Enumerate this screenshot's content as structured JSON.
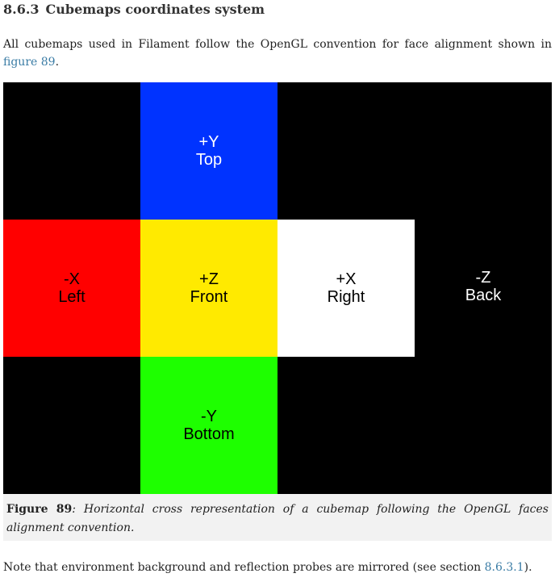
{
  "section": {
    "number": "8.6.3",
    "title": "Cubemaps coordinates system"
  },
  "intro": {
    "text": "All cubemaps used in Filament follow the OpenGL convention for face alignment shown in ",
    "link": "figure 89",
    "end": "."
  },
  "faces": {
    "top": {
      "axis": "+Y",
      "name": "Top"
    },
    "left": {
      "axis": "-X",
      "name": "Left"
    },
    "front": {
      "axis": "+Z",
      "name": "Front"
    },
    "right": {
      "axis": "+X",
      "name": "Right"
    },
    "back": {
      "axis": "-Z",
      "name": "Back"
    },
    "bottom": {
      "axis": "-Y",
      "name": "Bottom"
    }
  },
  "colors": {
    "top": "#0033ff",
    "left": "#ff0000",
    "front": "#ffea00",
    "right": "#ffffff",
    "back": "#000000",
    "bottom": "#1eff00",
    "background": "#000000",
    "link": "#3a7ca5"
  },
  "caption": {
    "label": "Figure 89",
    "text": ": Horizontal cross representation of a cubemap following the OpenGL faces alignment convention."
  },
  "note": {
    "text": "Note that environment background and reflection probes are mirrored (see section ",
    "link": "8.6.3.1",
    "end": ")."
  }
}
